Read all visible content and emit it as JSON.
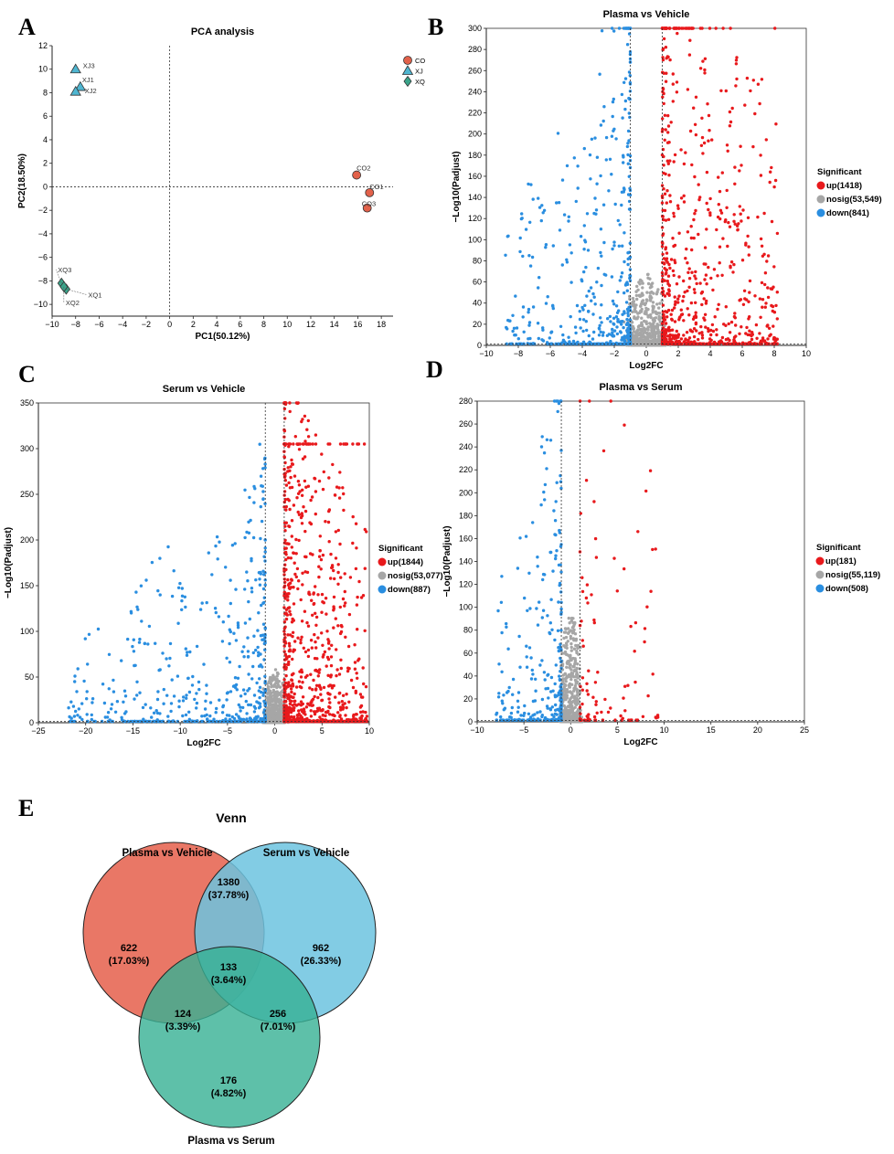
{
  "panel_labels": [
    "A",
    "B",
    "C",
    "D",
    "E"
  ],
  "colors": {
    "up": "#e8191c",
    "nosig": "#a6a6a6",
    "down": "#2a8ee0",
    "co": "#e2614a",
    "xj": "#4fb6d1",
    "xq": "#3aa48a",
    "venn_a": "#e8705e",
    "venn_b": "#6cc3df",
    "venn_c": "#36b093"
  },
  "chart_data": [
    {
      "id": "A",
      "type": "scatter",
      "title": "PCA analysis",
      "xlabel": "PC1(50.12%)",
      "ylabel": "PC2(18.50%)",
      "xlim": [
        -10,
        19
      ],
      "ylim": [
        -11,
        12
      ],
      "xticks": [
        -10,
        -8,
        -6,
        -4,
        -2,
        0,
        2,
        4,
        6,
        8,
        10,
        12,
        14,
        16,
        18
      ],
      "xtick_labels": [
        "−10",
        "−8",
        "−6",
        "−4",
        "−2",
        "0",
        "2",
        "4",
        "6",
        "8",
        "10",
        "12",
        "14",
        "16",
        "18"
      ],
      "yticks": [
        -10,
        -8,
        -6,
        -4,
        -2,
        0,
        2,
        4,
        6,
        8,
        10,
        12
      ],
      "ytick_labels": [
        "−10",
        "−8",
        "−6",
        "−4",
        "−2",
        "0",
        "2",
        "4",
        "6",
        "8",
        "10",
        "12"
      ],
      "legend": [
        {
          "name": "CO",
          "shape": "circle",
          "color": "#e2614a"
        },
        {
          "name": "XJ",
          "shape": "triangle",
          "color": "#4fb6d1"
        },
        {
          "name": "XQ",
          "shape": "diamond",
          "color": "#3aa48a"
        }
      ],
      "points": [
        {
          "label": "CO2",
          "group": "CO",
          "x": 15.9,
          "y": 1.0
        },
        {
          "label": "CO1",
          "group": "CO",
          "x": 17.0,
          "y": -0.5
        },
        {
          "label": "CO3",
          "group": "CO",
          "x": 16.8,
          "y": -1.8
        },
        {
          "label": "XJ3",
          "group": "XJ",
          "x": -8.0,
          "y": 10.0
        },
        {
          "label": "XJ1",
          "group": "XJ",
          "x": -7.6,
          "y": 8.5
        },
        {
          "label": "XJ2",
          "group": "XJ",
          "x": -8.0,
          "y": 8.1
        },
        {
          "label": "XQ3",
          "group": "XQ",
          "x": -9.2,
          "y": -8.2
        },
        {
          "label": "XQ1",
          "group": "XQ",
          "x": -8.8,
          "y": -8.7
        },
        {
          "label": "XQ2",
          "group": "XQ",
          "x": -9.0,
          "y": -8.5
        }
      ]
    },
    {
      "id": "B",
      "type": "scatter",
      "title": "Plasma vs Vehicle",
      "xlabel": "Log2FC",
      "ylabel": "−Log10(Padjust)",
      "xlim": [
        -10,
        10
      ],
      "ylim": [
        0,
        300
      ],
      "xticks": [
        -10,
        -8,
        -6,
        -4,
        -2,
        0,
        2,
        4,
        6,
        8,
        10
      ],
      "xtick_labels": [
        "−10",
        "−8",
        "−6",
        "−4",
        "−2",
        "0",
        "2",
        "4",
        "6",
        "8",
        "10"
      ],
      "yticks": [
        0,
        20,
        40,
        60,
        80,
        100,
        120,
        140,
        160,
        180,
        200,
        220,
        240,
        260,
        280,
        300
      ],
      "ytick_labels": [
        "0",
        "20",
        "40",
        "60",
        "80",
        "100",
        "120",
        "140",
        "160",
        "180",
        "200",
        "220",
        "240",
        "260",
        "280",
        "300"
      ],
      "thresholds": {
        "x": [
          -1,
          1
        ],
        "y": 1.3
      },
      "legend_title": "Significant",
      "legend": [
        {
          "key": "up",
          "label": "up(1418)",
          "count": 1418
        },
        {
          "key": "nosig",
          "label": "nosig(53,549)",
          "count": 53549
        },
        {
          "key": "down",
          "label": "down(841)",
          "count": 841
        }
      ],
      "distribution": {
        "up_max_x": 8.2,
        "down_min_x": -8.8,
        "up_max_y": 300,
        "down_max_y": 298,
        "capped_y": 300,
        "nosig_max_y": 70
      }
    },
    {
      "id": "C",
      "type": "scatter",
      "title": "Serum vs Vehicle",
      "xlabel": "Log2FC",
      "ylabel": "−Log10(Padjust)",
      "xlim": [
        -25,
        10
      ],
      "ylim": [
        0,
        350
      ],
      "xticks": [
        -25,
        -20,
        -15,
        -10,
        -5,
        0,
        5,
        10
      ],
      "xtick_labels": [
        "−25",
        "−20",
        "−15",
        "−10",
        "−5",
        "0",
        "5",
        "10"
      ],
      "yticks": [
        0,
        50,
        100,
        150,
        200,
        250,
        300,
        350
      ],
      "ytick_labels": [
        "0",
        "50",
        "100",
        "150",
        "200",
        "250",
        "300",
        "350"
      ],
      "thresholds": {
        "x": [
          -1,
          1
        ],
        "y": 1.3
      },
      "legend_title": "Significant",
      "legend": [
        {
          "key": "up",
          "label": "up(1844)",
          "count": 1844
        },
        {
          "key": "nosig",
          "label": "nosig(53,077)",
          "count": 53077
        },
        {
          "key": "down",
          "label": "down(887)",
          "count": 887
        }
      ],
      "distribution": {
        "up_max_x": 9.8,
        "down_min_x": -22,
        "up_max_y": 305,
        "down_max_y": 260,
        "capped_y": 305,
        "nosig_max_y": 60
      }
    },
    {
      "id": "D",
      "type": "scatter",
      "title": "Plasma vs Serum",
      "xlabel": "Log2FC",
      "ylabel": "−Log10(Padjust)",
      "xlim": [
        -10,
        25
      ],
      "ylim": [
        0,
        280
      ],
      "xticks": [
        -10,
        -5,
        0,
        5,
        10,
        15,
        20,
        25
      ],
      "xtick_labels": [
        "−10",
        "−5",
        "0",
        "5",
        "10",
        "15",
        "20",
        "25"
      ],
      "yticks": [
        0,
        20,
        40,
        60,
        80,
        100,
        120,
        140,
        160,
        180,
        200,
        220,
        240,
        260,
        280
      ],
      "ytick_labels": [
        "0",
        "20",
        "40",
        "60",
        "80",
        "100",
        "120",
        "140",
        "160",
        "180",
        "200",
        "220",
        "240",
        "260",
        "280"
      ],
      "thresholds": {
        "x": [
          -1,
          1
        ],
        "y": 1.3
      },
      "legend_title": "Significant",
      "legend": [
        {
          "key": "up",
          "label": "up(181)",
          "count": 181
        },
        {
          "key": "nosig",
          "label": "nosig(55,119)",
          "count": 55119
        },
        {
          "key": "down",
          "label": "down(508)",
          "count": 508
        }
      ],
      "distribution": {
        "up_max_x": 9.5,
        "down_min_x": -8,
        "up_max_y": 275,
        "down_max_y": 276,
        "capped_y": 0,
        "nosig_max_y": 100
      }
    },
    {
      "id": "E",
      "type": "venn",
      "title": "Venn",
      "sets": [
        "Plasma vs Vehicle",
        "Serum vs Vehicle",
        "Plasma vs Serum"
      ],
      "regions": [
        {
          "key": "a_only",
          "count": "622",
          "percent": "(17.03%)"
        },
        {
          "key": "ab",
          "count": "1380",
          "percent": "(37.78%)"
        },
        {
          "key": "b_only",
          "count": "962",
          "percent": "(26.33%)"
        },
        {
          "key": "abc",
          "count": "133",
          "percent": "(3.64%)"
        },
        {
          "key": "ac",
          "count": "124",
          "percent": "(3.39%)"
        },
        {
          "key": "bc",
          "count": "256",
          "percent": "(7.01%)"
        },
        {
          "key": "c_only",
          "count": "176",
          "percent": "(4.82%)"
        }
      ]
    }
  ]
}
